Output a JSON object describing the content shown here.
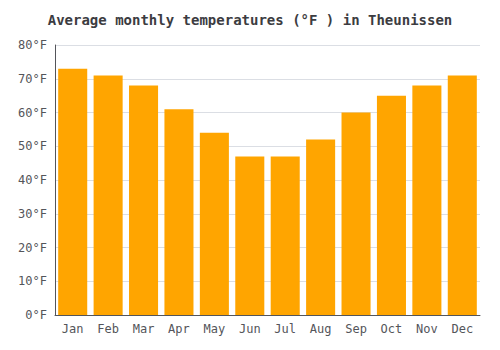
{
  "chart_data": {
    "type": "bar",
    "title": "Average monthly temperatures (°F ) in Theunissen",
    "categories": [
      "Jan",
      "Feb",
      "Mar",
      "Apr",
      "May",
      "Jun",
      "Jul",
      "Aug",
      "Sep",
      "Oct",
      "Nov",
      "Dec"
    ],
    "values": [
      73,
      71,
      68,
      61,
      54,
      47,
      47,
      52,
      60,
      65,
      68,
      71
    ],
    "color": "#FFA500",
    "ylim": [
      0,
      80
    ],
    "yticks": [
      {
        "value": 0,
        "label": "0°F"
      },
      {
        "value": 10,
        "label": "10°F"
      },
      {
        "value": 20,
        "label": "20°F"
      },
      {
        "value": 30,
        "label": "30°F"
      },
      {
        "value": 40,
        "label": "40°F"
      },
      {
        "value": 50,
        "label": "50°F"
      },
      {
        "value": 60,
        "label": "60°F"
      },
      {
        "value": 70,
        "label": "70°F"
      },
      {
        "value": 80,
        "label": "80°F"
      }
    ],
    "grid": true
  }
}
